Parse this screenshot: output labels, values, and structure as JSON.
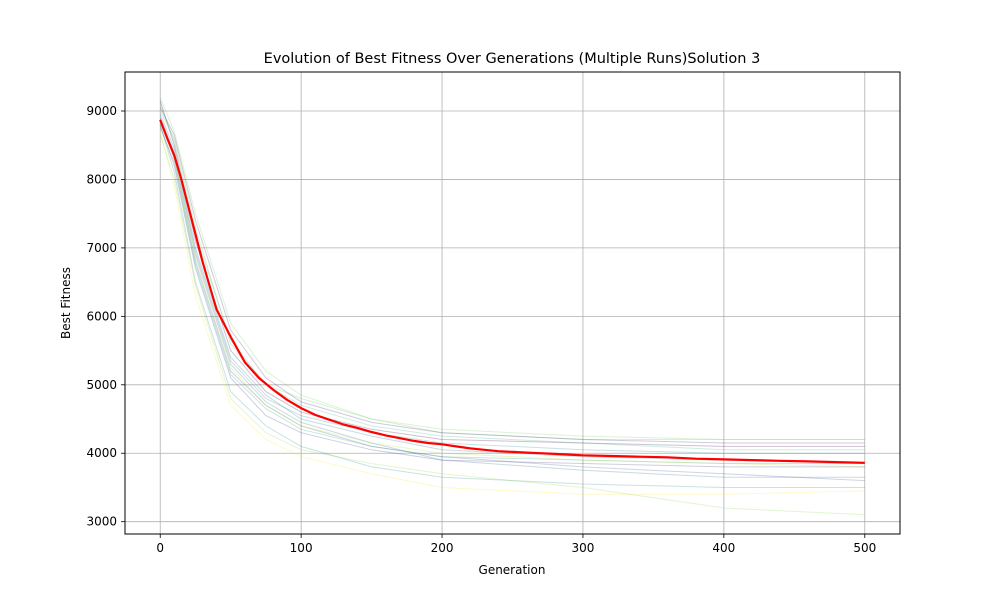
{
  "chart_data": {
    "type": "line",
    "title": "Evolution of Best Fitness Over Generations (Multiple Runs)Solution 3",
    "xlabel": "Generation",
    "ylabel": "Best Fitness",
    "xlim": [
      -25,
      525
    ],
    "ylim": [
      2820,
      9570
    ],
    "x_ticks": [
      0,
      100,
      200,
      300,
      400,
      500
    ],
    "y_ticks": [
      3000,
      4000,
      5000,
      6000,
      7000,
      8000,
      9000
    ],
    "grid": true,
    "legend": "none",
    "mean_color": "#ff0000",
    "run_colors": [
      "#440154",
      "#3b528b",
      "#21918c",
      "#5ec962",
      "#fde725",
      "#2c728e",
      "#31688e",
      "#35b779",
      "#90d743",
      "#482878",
      "#443983",
      "#26828e",
      "#1f9e89",
      "#6ece58",
      "#b5de2b"
    ],
    "series": [
      {
        "role": "mean",
        "x": [
          0,
          5,
          10,
          15,
          20,
          25,
          30,
          35,
          40,
          50,
          60,
          70,
          80,
          90,
          100,
          110,
          120,
          130,
          140,
          150,
          160,
          170,
          180,
          190,
          200,
          210,
          220,
          230,
          240,
          250,
          260,
          270,
          280,
          290,
          300,
          320,
          340,
          360,
          380,
          400,
          420,
          440,
          460,
          480,
          500
        ],
        "values": [
          8870,
          8600,
          8350,
          8000,
          7600,
          7200,
          6800,
          6450,
          6100,
          5700,
          5330,
          5100,
          4930,
          4780,
          4660,
          4560,
          4490,
          4420,
          4370,
          4310,
          4260,
          4220,
          4180,
          4150,
          4130,
          4100,
          4070,
          4050,
          4030,
          4020,
          4010,
          4000,
          3990,
          3980,
          3970,
          3960,
          3950,
          3940,
          3920,
          3910,
          3900,
          3890,
          3880,
          3870,
          3860
        ]
      },
      {
        "role": "run",
        "values_at": [
          0,
          10,
          25,
          50,
          75,
          100,
          150,
          200,
          300,
          400,
          500
        ],
        "values": [
          9150,
          8500,
          7100,
          5500,
          4900,
          4600,
          4350,
          4200,
          4150,
          4100,
          4100
        ]
      },
      {
        "role": "run",
        "values_at": [
          0,
          10,
          25,
          50,
          75,
          100,
          150,
          200,
          300,
          400,
          500
        ],
        "values": [
          8900,
          8300,
          6800,
          5200,
          4700,
          4400,
          4100,
          3950,
          3800,
          3700,
          3600
        ]
      },
      {
        "role": "run",
        "values_at": [
          0,
          10,
          25,
          50,
          75,
          100,
          150,
          200,
          300,
          400,
          500
        ],
        "values": [
          8800,
          8100,
          6500,
          4900,
          4400,
          4100,
          3800,
          3650,
          3550,
          3500,
          3500
        ]
      },
      {
        "role": "run",
        "values_at": [
          0,
          10,
          25,
          50,
          75,
          100,
          150,
          200,
          300,
          400,
          500
        ],
        "values": [
          9000,
          8600,
          7300,
          5600,
          5000,
          4800,
          4500,
          4300,
          4200,
          4200,
          4200
        ]
      },
      {
        "role": "run",
        "values_at": [
          0,
          10,
          25,
          50,
          75,
          100,
          150,
          200,
          300,
          400,
          500
        ],
        "values": [
          8700,
          7900,
          6300,
          4700,
          4200,
          3950,
          3700,
          3500,
          3400,
          3400,
          3450
        ]
      },
      {
        "role": "run",
        "values_at": [
          0,
          10,
          25,
          50,
          75,
          100,
          150,
          200,
          300,
          400,
          500
        ],
        "values": [
          8950,
          8450,
          7000,
          5400,
          4850,
          4500,
          4250,
          4050,
          3950,
          3900,
          3850
        ]
      },
      {
        "role": "run",
        "values_at": [
          0,
          10,
          25,
          50,
          75,
          100,
          150,
          200,
          300,
          400,
          500
        ],
        "values": [
          8850,
          8350,
          6900,
          5300,
          4750,
          4450,
          4150,
          3900,
          3750,
          3650,
          3650
        ]
      },
      {
        "role": "run",
        "values_at": [
          0,
          10,
          25,
          50,
          75,
          100,
          150,
          200,
          300,
          400,
          500
        ],
        "values": [
          9100,
          8550,
          7200,
          5650,
          5000,
          4700,
          4400,
          4250,
          4150,
          4050,
          4050
        ]
      },
      {
        "role": "run",
        "values_at": [
          0,
          10,
          25,
          50,
          75,
          100,
          150,
          200,
          300,
          400,
          500
        ],
        "values": [
          8650,
          8000,
          6450,
          4800,
          4300,
          4050,
          3850,
          3700,
          3500,
          3200,
          3100
        ]
      },
      {
        "role": "run",
        "values_at": [
          0,
          10,
          25,
          50,
          75,
          100,
          150,
          200,
          300,
          400,
          500
        ],
        "values": [
          9050,
          8650,
          7400,
          5800,
          5100,
          4750,
          4450,
          4300,
          4200,
          4150,
          4150
        ]
      },
      {
        "role": "run",
        "values_at": [
          0,
          10,
          25,
          50,
          75,
          100,
          150,
          200,
          300,
          400,
          500
        ],
        "values": [
          8800,
          8200,
          6700,
          5100,
          4550,
          4300,
          4050,
          3900,
          3850,
          3800,
          3800
        ]
      },
      {
        "role": "run",
        "values_at": [
          0,
          10,
          25,
          50,
          75,
          100,
          150,
          200,
          300,
          400,
          500
        ],
        "values": [
          8900,
          8400,
          6950,
          5350,
          4800,
          4550,
          4300,
          4150,
          4050,
          4000,
          4000
        ]
      },
      {
        "role": "run",
        "values_at": [
          0,
          10,
          25,
          50,
          75,
          100,
          150,
          200,
          300,
          400,
          500
        ],
        "values": [
          8750,
          8250,
          6750,
          5150,
          4650,
          4350,
          4100,
          3950,
          3900,
          3850,
          3850
        ]
      },
      {
        "role": "run",
        "values_at": [
          0,
          10,
          25,
          50,
          75,
          100,
          150,
          200,
          300,
          400,
          500
        ],
        "values": [
          9200,
          8700,
          7500,
          5900,
          5200,
          4850,
          4500,
          4350,
          4250,
          4200,
          4200
        ]
      },
      {
        "role": "run",
        "values_at": [
          0,
          10,
          25,
          50,
          75,
          100,
          150,
          200,
          300,
          400,
          500
        ],
        "values": [
          8850,
          8300,
          6850,
          5250,
          4700,
          4400,
          4150,
          4000,
          3900,
          3850,
          3800
        ]
      }
    ]
  }
}
